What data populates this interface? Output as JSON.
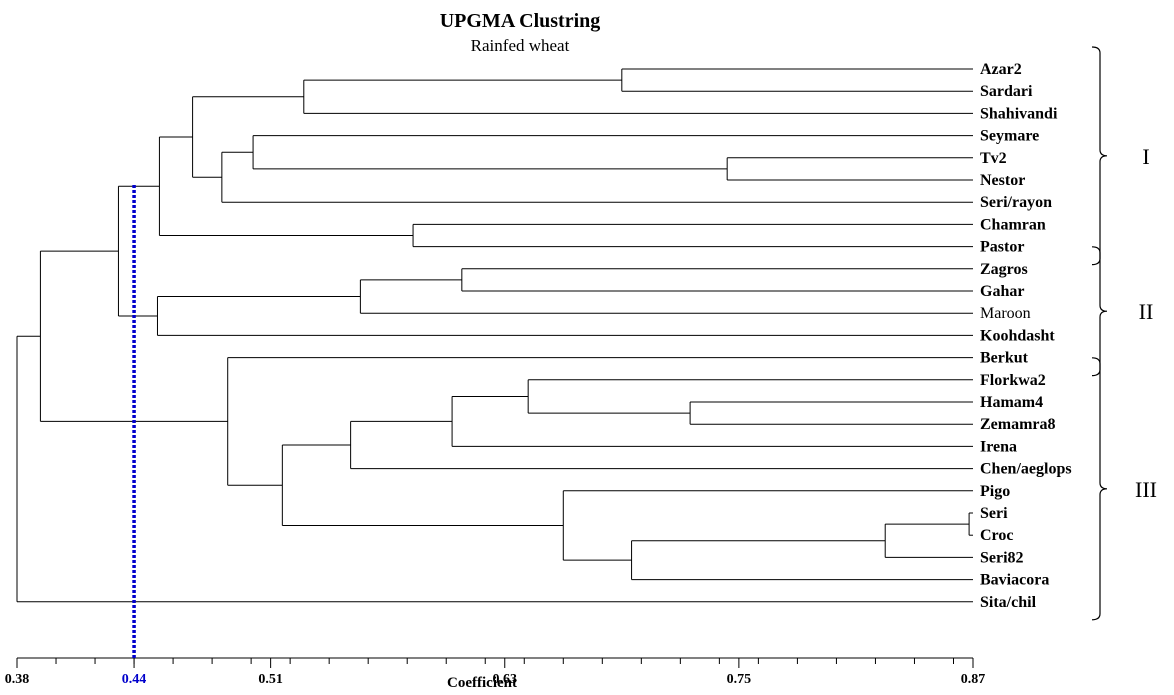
{
  "chart_data": {
    "type": "dendrogram",
    "title": "UPGMA Clustring",
    "subtitle": "Rainfed wheat",
    "xlabel": "Coefficient",
    "xlim": [
      0.38,
      0.87
    ],
    "ticks": [
      {
        "value": 0.38,
        "label": "0.38",
        "highlight": false
      },
      {
        "value": 0.44,
        "label": "0.44",
        "highlight": true
      },
      {
        "value": 0.51,
        "label": "0.51",
        "highlight": false
      },
      {
        "value": 0.63,
        "label": "0.63",
        "highlight": false
      },
      {
        "value": 0.75,
        "label": "0.75",
        "highlight": false
      },
      {
        "value": 0.87,
        "label": "0.87",
        "highlight": false
      }
    ],
    "minor_tick_step": 0.02,
    "cutoff": 0.44,
    "cutoff_color": "#0000cc",
    "line_color": "#000000",
    "leaves": [
      {
        "name": "Azar2",
        "bold": true
      },
      {
        "name": "Sardari",
        "bold": true
      },
      {
        "name": "Shahivandi",
        "bold": true
      },
      {
        "name": "Seymare",
        "bold": true
      },
      {
        "name": "Tv2",
        "bold": true
      },
      {
        "name": "Nestor",
        "bold": true
      },
      {
        "name": "Seri/rayon",
        "bold": true
      },
      {
        "name": "Chamran",
        "bold": true
      },
      {
        "name": "Pastor",
        "bold": true
      },
      {
        "name": "Zagros",
        "bold": true
      },
      {
        "name": "Gahar",
        "bold": true
      },
      {
        "name": "Maroon",
        "bold": false
      },
      {
        "name": "Koohdasht",
        "bold": true
      },
      {
        "name": "Berkut",
        "bold": true
      },
      {
        "name": "Florkwa2",
        "bold": true
      },
      {
        "name": "Hamam4",
        "bold": true
      },
      {
        "name": "Zemamra8",
        "bold": true
      },
      {
        "name": "Irena",
        "bold": true
      },
      {
        "name": "Chen/aeglops",
        "bold": true
      },
      {
        "name": "Pigo",
        "bold": true
      },
      {
        "name": "Seri",
        "bold": true
      },
      {
        "name": "Croc",
        "bold": true
      },
      {
        "name": "Seri82",
        "bold": true
      },
      {
        "name": "Baviacora",
        "bold": true
      },
      {
        "name": "Sita/chil",
        "bold": true
      }
    ],
    "merges": [
      {
        "id": "n1",
        "a": "Azar2",
        "b": "Sardari",
        "height": 0.69
      },
      {
        "id": "n2",
        "a": "n1",
        "b": "Shahivandi",
        "height": 0.527
      },
      {
        "id": "n3",
        "a": "Tv2",
        "b": "Nestor",
        "height": 0.744
      },
      {
        "id": "n4",
        "a": "Seymare",
        "b": "n3",
        "height": 0.501
      },
      {
        "id": "n5",
        "a": "n4",
        "b": "Seri/rayon",
        "height": 0.485
      },
      {
        "id": "n6",
        "a": "n2",
        "b": "n5",
        "height": 0.47
      },
      {
        "id": "n7",
        "a": "Chamran",
        "b": "Pastor",
        "height": 0.583
      },
      {
        "id": "n8",
        "a": "n6",
        "b": "n7",
        "height": 0.453
      },
      {
        "id": "n9",
        "a": "Zagros",
        "b": "Gahar",
        "height": 0.608
      },
      {
        "id": "n10",
        "a": "n9",
        "b": "Maroon",
        "height": 0.556
      },
      {
        "id": "n11",
        "a": "n10",
        "b": "Koohdasht",
        "height": 0.452
      },
      {
        "id": "n12",
        "a": "n8",
        "b": "n11",
        "height": 0.432
      },
      {
        "id": "n13",
        "a": "Hamam4",
        "b": "Zemamra8",
        "height": 0.725
      },
      {
        "id": "n14",
        "a": "Florkwa2",
        "b": "n13",
        "height": 0.642
      },
      {
        "id": "n15",
        "a": "n14",
        "b": "Irena",
        "height": 0.603
      },
      {
        "id": "n16",
        "a": "n15",
        "b": "Chen/aeglops",
        "height": 0.551
      },
      {
        "id": "n17",
        "a": "Seri",
        "b": "Croc",
        "height": 0.868
      },
      {
        "id": "n18",
        "a": "n17",
        "b": "Seri82",
        "height": 0.825
      },
      {
        "id": "n19",
        "a": "n18",
        "b": "Baviacora",
        "height": 0.695
      },
      {
        "id": "n20",
        "a": "Pigo",
        "b": "n19",
        "height": 0.66
      },
      {
        "id": "n21",
        "a": "n16",
        "b": "n20",
        "height": 0.516
      },
      {
        "id": "n22",
        "a": "Berkut",
        "b": "n21",
        "height": 0.488
      },
      {
        "id": "n23",
        "a": "n12",
        "b": "n22",
        "height": 0.392
      },
      {
        "id": "n24",
        "a": "n23",
        "b": "Sita/chil",
        "height": 0.38
      }
    ],
    "groups": [
      {
        "label": "I",
        "from": "Azar2",
        "to": "Pastor"
      },
      {
        "label": "II",
        "from": "Zagros",
        "to": "Berkut"
      },
      {
        "label": "III",
        "from": "Florkwa2",
        "to": "Sita/chil"
      }
    ]
  }
}
